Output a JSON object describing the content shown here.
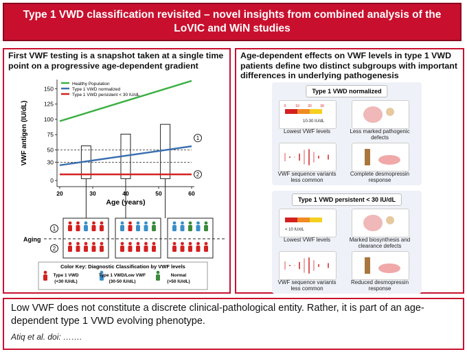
{
  "header": {
    "title": "Type 1 VWD classification revisited – novel insights from combined analysis of the LoVIC and WiN studies"
  },
  "left_panel": {
    "title": "First VWF testing is a snapshot taken at a single time point on a progressive age-dependent gradient",
    "chart": {
      "type": "line",
      "x_label": "Age (years)",
      "y_label": "VWF antigen (IU/dL)",
      "xlim": [
        20,
        60
      ],
      "xticks": [
        20,
        30,
        40,
        50,
        60
      ],
      "ylim": [
        -10,
        165
      ],
      "yticks": [
        0,
        30,
        50,
        75,
        100,
        125,
        150
      ],
      "reference_lines": [
        50,
        30
      ],
      "series": [
        {
          "name": "Healthy Population",
          "color": "#3cb043",
          "x": [
            20,
            60
          ],
          "values": [
            97,
            163
          ]
        },
        {
          "name": "Type 1 VWD normalized",
          "color": "#3a6fb0",
          "x": [
            20,
            60
          ],
          "values": [
            25,
            56
          ]
        },
        {
          "name": "Type 1 VWD persistent < 30 IU/dL",
          "color": "#d42020",
          "x": [
            20,
            60
          ],
          "values": [
            10,
            10
          ]
        }
      ]
    },
    "markers": [
      "1",
      "2"
    ],
    "aging_label": "Aging",
    "color_key": {
      "title": "Color Key: Diagnostic Classification by VWF levels",
      "items": [
        {
          "label": "Type 1 VWD",
          "range": "(<30 IU/dL)",
          "color": "#d42020"
        },
        {
          "label": "Type 1 VWD/Low VWF",
          "range": "(30-50 IU/dL)",
          "color": "#3a8fc8"
        },
        {
          "label": "Normal",
          "range": "(>50 IU/dL)",
          "color": "#3c8a3c"
        }
      ]
    }
  },
  "right_panel": {
    "title": "Age-dependent effects on VWF levels in type 1 VWD patients define two distinct subgroups with important differences in underlying pathogenesis",
    "sections": [
      {
        "title": "Type 1 VWD normalized",
        "gauge_ticks": [
          0,
          10,
          20,
          30
        ],
        "gauge_label": "10-30 IU/dL",
        "cards": [
          "Lowest VWF levels",
          "Less marked pathogenic defects",
          "VWF sequence variants less common",
          "Complete desmopressin response"
        ]
      },
      {
        "title": "Type 1 VWD persistent < 30 IU/dL",
        "gauge_label": "< 10 IU/dL",
        "cards": [
          "Lowest VWF levels",
          "Marked biosynthesis and clearance defects",
          "VWF sequence variants less common",
          "Reduced desmopressin response"
        ]
      }
    ]
  },
  "footer": {
    "statement": "Low VWF does not constitute a discrete clinical-pathological entity. Rather, it is part of an age-dependent type 1 VWD evolving phenotype.",
    "citation": "Atiq et al. doi: ……."
  }
}
